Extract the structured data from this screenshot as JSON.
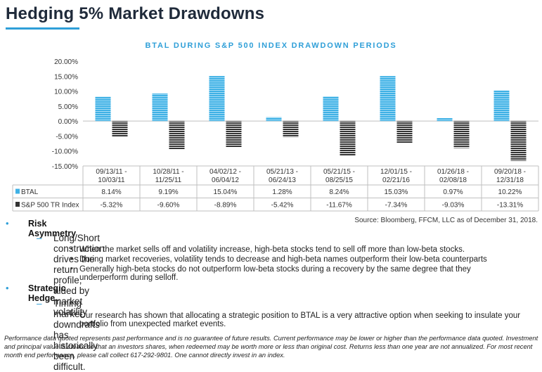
{
  "title": "Hedging 5% Market Drawdowns",
  "chart_data": {
    "type": "bar",
    "title": "BTAL DURING S&P 500 INDEX DRAWDOWN PERIODS",
    "categories": [
      [
        "09/13/11 -",
        "10/03/11"
      ],
      [
        "10/28/11 -",
        "11/25/11"
      ],
      [
        "04/02/12 -",
        "06/04/12"
      ],
      [
        "05/21/13 -",
        "06/24/13"
      ],
      [
        "05/21/15 -",
        "08/25/15"
      ],
      [
        "12/01/15 -",
        "02/21/16"
      ],
      [
        "01/26/18 -",
        "02/08/18"
      ],
      [
        "09/20/18 -",
        "12/31/18"
      ]
    ],
    "series": [
      {
        "name": "BTAL",
        "color": "#3fb1e5",
        "values": [
          8.14,
          9.19,
          15.04,
          1.28,
          8.24,
          15.03,
          0.97,
          10.22
        ],
        "labels": [
          "8.14%",
          "9.19%",
          "15.04%",
          "1.28%",
          "8.24%",
          "15.03%",
          "0.97%",
          "10.22%"
        ]
      },
      {
        "name": "S&P 500 TR Index",
        "color": "#333333",
        "values": [
          -5.32,
          -9.6,
          -8.89,
          -5.42,
          -11.67,
          -7.34,
          -9.03,
          -13.31
        ],
        "labels": [
          "-5.32%",
          "-9.60%",
          "-8.89%",
          "-5.42%",
          "-11.67%",
          "-7.34%",
          "-9.03%",
          "-13.31%"
        ]
      }
    ],
    "ylim": [
      -15,
      20
    ],
    "yticks": [
      "20.00%",
      "15.00%",
      "10.00%",
      "5.00%",
      "0.00%",
      "-5.00%",
      "-10.00%",
      "-15.00%"
    ],
    "grid": false,
    "legend": "data-table"
  },
  "source": "Source: Bloomberg, FFCM, LLC as of December 31, 2018.",
  "bullets": {
    "risk_title": "Risk Asymmetry",
    "risk_sub": "Long/Short construction drives the return profile, aided by market volatility",
    "risk_points": [
      "When the market sells off and volatility increase, high-beta stocks tend to sell off more than low-beta stocks.",
      "During market recoveries, volatility tends to decrease and high-beta names outperform their low-beta counterparts",
      "Generally high-beta stocks do not outperform low-beta stocks during a recovery by the same degree that they underperform during selloff."
    ],
    "hedge_title": "Strategic Hedge",
    "hedge_sub": "Timing market downdrafts has historically been difficult.",
    "hedge_points": [
      "Our research has shown that allocating a strategic position to BTAL is a very attractive option when seeking to insulate your portfolio from unexpected market events."
    ]
  },
  "disclaimer": "Performance data quoted represents past performance and is no guarantee of future results. Current performance may be lower or higher than the performance data quoted. Investment and principal value fluctuate so that an investors shares, when redeemed may be worth more or less than original cost.  Returns less than one year are not annualized.  For most recent month end performance, please call collect 617-292-9801. One cannot directly invest in an index."
}
